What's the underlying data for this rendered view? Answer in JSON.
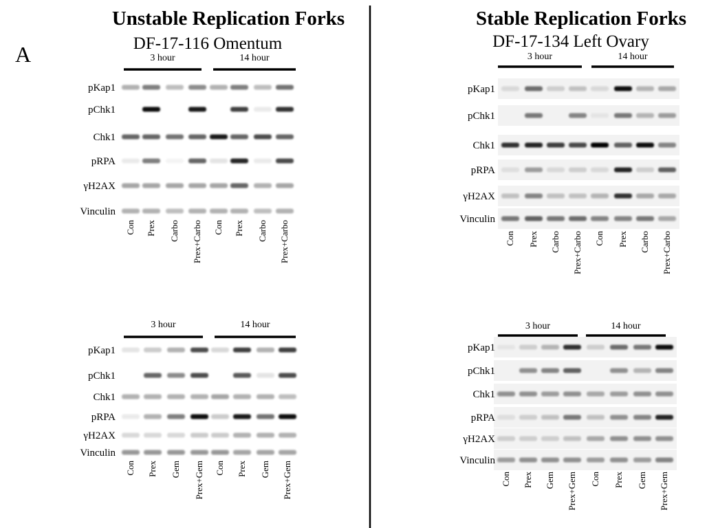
{
  "panel_label": "A",
  "left": {
    "title": "Unstable Replication Forks",
    "subtitle": "DF-17-116 Omentum",
    "blots": [
      {
        "time_labels": [
          "3 hour",
          "14 hour"
        ],
        "rows": [
          "pKap1",
          "pChk1",
          "Chk1",
          "pRPA",
          "γH2AX",
          "Vinculin"
        ],
        "lanes": [
          "Con",
          "Prex",
          "Carbo",
          "Prex+Carbo",
          "Con",
          "Prex",
          "Carbo",
          "Prex+Carbo"
        ]
      },
      {
        "time_labels": [
          "3 hour",
          "14 hour"
        ],
        "rows": [
          "pKap1",
          "pChk1",
          "Chk1",
          "pRPA",
          "γH2AX",
          "Vinculin"
        ],
        "lanes": [
          "Con",
          "Prex",
          "Gem",
          "Prex+Gem",
          "Con",
          "Prex",
          "Gem",
          "Prex+Gem"
        ]
      }
    ]
  },
  "right": {
    "title": "Stable Replication Forks",
    "subtitle": "DF-17-134 Left Ovary",
    "blots": [
      {
        "time_labels": [
          "3 hour",
          "14 hour"
        ],
        "rows": [
          "pKap1",
          "pChk1",
          "Chk1",
          "pRPA",
          "γH2AX",
          "Vinculin"
        ],
        "lanes": [
          "Con",
          "Prex",
          "Carbo",
          "Prex+Carbo",
          "Con",
          "Prex",
          "Carbo",
          "Prex+Carbo"
        ]
      },
      {
        "time_labels": [
          "3 hour",
          "14 hour"
        ],
        "rows": [
          "pKap1",
          "pChk1",
          "Chk1",
          "pRPA",
          "γH2AX",
          "Vinculin"
        ],
        "lanes": [
          "Con",
          "Prex",
          "Gem",
          "Prex+Gem",
          "Con",
          "Prex",
          "Gem",
          "Prex+Gem"
        ]
      }
    ]
  }
}
